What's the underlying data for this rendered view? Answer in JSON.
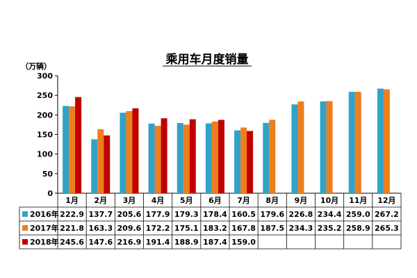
{
  "chart_data": {
    "type": "bar",
    "title": "乘用车月度销量",
    "unit_label": "（万辆）",
    "ylabel": "",
    "xlabel": "",
    "ylim": [
      0,
      300
    ],
    "yticks": [
      0,
      50,
      100,
      150,
      200,
      250,
      300
    ],
    "categories": [
      "1月",
      "2月",
      "3月",
      "4月",
      "5月",
      "6月",
      "7月",
      "8月",
      "9月",
      "10月",
      "11月",
      "12月"
    ],
    "series": [
      {
        "name": "2016年",
        "color": "#31A3C7",
        "values": [
          222.9,
          137.7,
          205.6,
          177.9,
          179.3,
          178.4,
          160.5,
          179.6,
          226.8,
          234.4,
          259.0,
          267.2
        ]
      },
      {
        "name": "2017年",
        "color": "#EE7D1D",
        "values": [
          221.8,
          163.3,
          209.6,
          172.2,
          175.1,
          183.2,
          167.8,
          187.5,
          234.3,
          235.2,
          258.9,
          265.3
        ]
      },
      {
        "name": "2018年",
        "color": "#C00000",
        "values": [
          245.6,
          147.6,
          216.9,
          191.4,
          188.9,
          187.4,
          159.0,
          null,
          null,
          null,
          null,
          null
        ]
      }
    ],
    "table": {
      "rows": [
        {
          "label": "2016年",
          "cells": [
            "222.9",
            "137.7",
            "205.6",
            "177.9",
            "179.3",
            "178.4",
            "160.5",
            "179.6",
            "226.8",
            "234.4",
            "259.0",
            "267.2"
          ]
        },
        {
          "label": "2017年",
          "cells": [
            "221.8",
            "163.3",
            "209.6",
            "172.2",
            "175.1",
            "183.2",
            "167.8",
            "187.5",
            "234.3",
            "235.2",
            "258.9",
            "265.3"
          ]
        },
        {
          "label": "2018年",
          "cells": [
            "245.6",
            "147.6",
            "216.9",
            "191.4",
            "188.9",
            "187.4",
            "159.0",
            "",
            "",
            "",
            "",
            ""
          ]
        }
      ]
    },
    "grid": false,
    "legend": "in-table"
  }
}
